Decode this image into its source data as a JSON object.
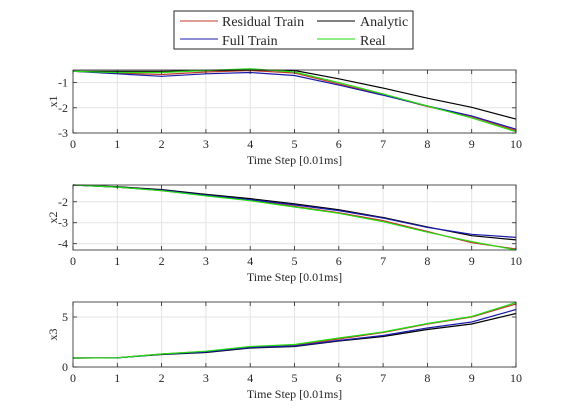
{
  "legend": {
    "entries": [
      {
        "name": "Residual Train",
        "color": "#c0392b"
      },
      {
        "name": "Analytic",
        "color": "#000000"
      },
      {
        "name": "Full Train",
        "color": "#1a1aaa"
      },
      {
        "name": "Real",
        "color": "#22dd11"
      }
    ]
  },
  "chart_data": [
    {
      "type": "line",
      "xlabel": "Time Step [0.01ms]",
      "ylabel": "x1",
      "xlim": [
        0,
        10
      ],
      "ylim": [
        -3,
        -0.5
      ],
      "xticks": [
        0,
        1,
        2,
        3,
        4,
        5,
        6,
        7,
        8,
        9,
        10
      ],
      "yticks": [
        -3,
        -2,
        -1
      ],
      "grid": true,
      "x": [
        0,
        1,
        2,
        3,
        4,
        5,
        6,
        7,
        8,
        9,
        10
      ],
      "series": [
        {
          "name": "Residual Train",
          "color": "#c0392b",
          "values": [
            -0.55,
            -0.62,
            -0.68,
            -0.58,
            -0.52,
            -0.62,
            -1.05,
            -1.48,
            -1.95,
            -2.35,
            -2.9
          ]
        },
        {
          "name": "Analytic",
          "color": "#000000",
          "values": [
            -0.55,
            -0.55,
            -0.55,
            -0.52,
            -0.5,
            -0.52,
            -0.85,
            -1.22,
            -1.62,
            -1.98,
            -2.45
          ]
        },
        {
          "name": "Full Train",
          "color": "#1a1aaa",
          "values": [
            -0.55,
            -0.65,
            -0.75,
            -0.65,
            -0.6,
            -0.72,
            -1.1,
            -1.5,
            -1.93,
            -2.32,
            -2.85
          ]
        },
        {
          "name": "Real",
          "color": "#22dd11",
          "values": [
            -0.55,
            -0.6,
            -0.6,
            -0.52,
            -0.45,
            -0.58,
            -1.0,
            -1.45,
            -1.93,
            -2.4,
            -2.95
          ]
        }
      ]
    },
    {
      "type": "line",
      "xlabel": "Time Step [0.01ms]",
      "ylabel": "x2",
      "xlim": [
        0,
        10
      ],
      "ylim": [
        -4.3,
        -1.2
      ],
      "xticks": [
        0,
        1,
        2,
        3,
        4,
        5,
        6,
        7,
        8,
        9,
        10
      ],
      "yticks": [
        -4,
        -3,
        -2
      ],
      "grid": true,
      "x": [
        0,
        1,
        2,
        3,
        4,
        5,
        6,
        7,
        8,
        9,
        10
      ],
      "series": [
        {
          "name": "Residual Train",
          "color": "#c0392b",
          "values": [
            -1.2,
            -1.3,
            -1.47,
            -1.7,
            -1.92,
            -2.22,
            -2.52,
            -2.9,
            -3.42,
            -3.95,
            -4.25
          ]
        },
        {
          "name": "Analytic",
          "color": "#000000",
          "values": [
            -1.2,
            -1.28,
            -1.42,
            -1.65,
            -1.85,
            -2.1,
            -2.38,
            -2.75,
            -3.2,
            -3.62,
            -3.82
          ]
        },
        {
          "name": "Full Train",
          "color": "#1a1aaa",
          "values": [
            -1.2,
            -1.3,
            -1.45,
            -1.68,
            -1.9,
            -2.15,
            -2.42,
            -2.78,
            -3.22,
            -3.55,
            -3.7
          ]
        },
        {
          "name": "Real",
          "color": "#22dd11",
          "values": [
            -1.2,
            -1.3,
            -1.47,
            -1.72,
            -1.95,
            -2.25,
            -2.55,
            -2.95,
            -3.45,
            -3.9,
            -4.3
          ]
        }
      ]
    },
    {
      "type": "line",
      "xlabel": "Time Step [0.01ms]",
      "ylabel": "x3",
      "xlim": [
        0,
        10
      ],
      "ylim": [
        0,
        6.5
      ],
      "xticks": [
        0,
        1,
        2,
        3,
        4,
        5,
        6,
        7,
        8,
        9,
        10
      ],
      "yticks": [
        0,
        5
      ],
      "grid": true,
      "x": [
        0,
        1,
        2,
        3,
        4,
        5,
        6,
        7,
        8,
        9,
        10
      ],
      "series": [
        {
          "name": "Residual Train",
          "color": "#c0392b",
          "values": [
            0.9,
            0.92,
            1.3,
            1.55,
            2.0,
            2.15,
            2.8,
            3.45,
            4.3,
            5.0,
            6.3
          ]
        },
        {
          "name": "Analytic",
          "color": "#000000",
          "values": [
            0.9,
            0.92,
            1.25,
            1.45,
            1.9,
            2.05,
            2.6,
            3.05,
            3.75,
            4.3,
            5.35
          ]
        },
        {
          "name": "Full Train",
          "color": "#1a1aaa",
          "values": [
            0.9,
            0.92,
            1.28,
            1.5,
            1.95,
            2.1,
            2.65,
            3.15,
            3.9,
            4.5,
            5.75
          ]
        },
        {
          "name": "Real",
          "color": "#22dd11",
          "values": [
            0.9,
            0.92,
            1.3,
            1.58,
            2.05,
            2.25,
            2.9,
            3.5,
            4.35,
            5.05,
            6.45
          ]
        }
      ]
    }
  ]
}
